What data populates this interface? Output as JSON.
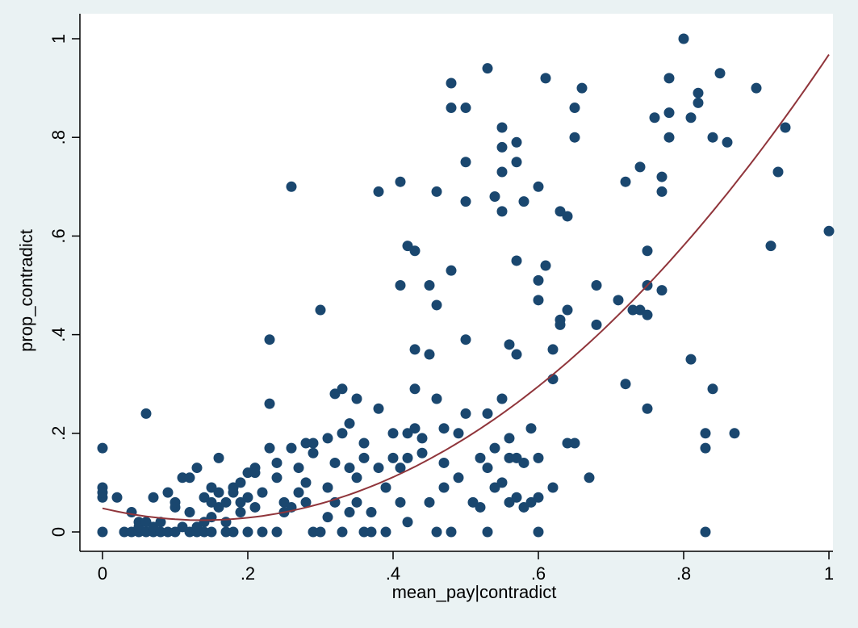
{
  "chart_data": {
    "type": "scatter",
    "xlabel": "mean_pay|contradict",
    "ylabel": "prop_contradict",
    "xlim": [
      0,
      1
    ],
    "ylim": [
      0,
      1
    ],
    "x_ticks": [
      0,
      0.2,
      0.4,
      0.6,
      0.8,
      1
    ],
    "x_tick_labels": [
      "0",
      ".2",
      ".4",
      ".6",
      ".8",
      "1"
    ],
    "y_ticks": [
      0,
      0.2,
      0.4,
      0.6,
      0.8,
      1
    ],
    "y_tick_labels": [
      "0",
      ".2",
      ".4",
      ".6",
      ".8",
      "1"
    ],
    "grid": false,
    "legend": "none",
    "colors": {
      "background": "#eaf2f3",
      "plot_area": "#ffffff",
      "points": "#1a476f",
      "fit_line": "#90353b"
    },
    "series": [
      {
        "type": "scatter",
        "points": [
          [
            0,
            0
          ],
          [
            0,
            0.17
          ],
          [
            0,
            0.07
          ],
          [
            0,
            0.08
          ],
          [
            0,
            0.09
          ],
          [
            0.02,
            0.07
          ],
          [
            0.03,
            0
          ],
          [
            0.04,
            0.04
          ],
          [
            0.04,
            0
          ],
          [
            0.05,
            0.02
          ],
          [
            0.05,
            0
          ],
          [
            0.05,
            0.01
          ],
          [
            0.06,
            0
          ],
          [
            0.06,
            0.02
          ],
          [
            0.06,
            0.24
          ],
          [
            0.07,
            0
          ],
          [
            0.07,
            0.01
          ],
          [
            0.07,
            0.07
          ],
          [
            0.08,
            0
          ],
          [
            0.08,
            0.02
          ],
          [
            0.09,
            0.08
          ],
          [
            0.09,
            0
          ],
          [
            0.1,
            0.05
          ],
          [
            0.1,
            0.06
          ],
          [
            0.1,
            0
          ],
          [
            0.11,
            0.01
          ],
          [
            0.11,
            0.11
          ],
          [
            0.12,
            0.04
          ],
          [
            0.12,
            0.11
          ],
          [
            0.12,
            0
          ],
          [
            0.13,
            0
          ],
          [
            0.13,
            0.01
          ],
          [
            0.13,
            0.13
          ],
          [
            0.14,
            0.07
          ],
          [
            0.14,
            0.02
          ],
          [
            0.14,
            0
          ],
          [
            0.15,
            0.03
          ],
          [
            0.15,
            0.06
          ],
          [
            0.15,
            0
          ],
          [
            0.15,
            0.09
          ],
          [
            0.16,
            0.15
          ],
          [
            0.16,
            0.05
          ],
          [
            0.16,
            0.08
          ],
          [
            0.17,
            0.06
          ],
          [
            0.17,
            0
          ],
          [
            0.17,
            0.02
          ],
          [
            0.18,
            0.08
          ],
          [
            0.18,
            0.09
          ],
          [
            0.18,
            0
          ],
          [
            0.19,
            0.04
          ],
          [
            0.19,
            0.06
          ],
          [
            0.19,
            0.1
          ],
          [
            0.2,
            0.12
          ],
          [
            0.2,
            0
          ],
          [
            0.2,
            0.07
          ],
          [
            0.21,
            0.13
          ],
          [
            0.21,
            0.05
          ],
          [
            0.21,
            0.12
          ],
          [
            0.22,
            0
          ],
          [
            0.22,
            0.08
          ],
          [
            0.23,
            0.17
          ],
          [
            0.23,
            0.39
          ],
          [
            0.23,
            0.26
          ],
          [
            0.24,
            0.14
          ],
          [
            0.24,
            0.11
          ],
          [
            0.24,
            0
          ],
          [
            0.25,
            0.06
          ],
          [
            0.25,
            0.04
          ],
          [
            0.26,
            0.7
          ],
          [
            0.26,
            0.17
          ],
          [
            0.26,
            0.05
          ],
          [
            0.27,
            0.08
          ],
          [
            0.27,
            0.13
          ],
          [
            0.28,
            0.18
          ],
          [
            0.28,
            0.1
          ],
          [
            0.28,
            0.06
          ],
          [
            0.29,
            0.18
          ],
          [
            0.29,
            0.16
          ],
          [
            0.29,
            0
          ],
          [
            0.3,
            0.45
          ],
          [
            0.3,
            0
          ],
          [
            0.31,
            0.19
          ],
          [
            0.31,
            0.09
          ],
          [
            0.31,
            0.03
          ],
          [
            0.32,
            0.14
          ],
          [
            0.32,
            0.28
          ],
          [
            0.32,
            0.06
          ],
          [
            0.33,
            0.2
          ],
          [
            0.33,
            0.29
          ],
          [
            0.33,
            0
          ],
          [
            0.34,
            0.22
          ],
          [
            0.34,
            0.13
          ],
          [
            0.34,
            0.04
          ],
          [
            0.35,
            0.27
          ],
          [
            0.35,
            0.11
          ],
          [
            0.35,
            0.06
          ],
          [
            0.36,
            0.15
          ],
          [
            0.36,
            0.18
          ],
          [
            0.36,
            0
          ],
          [
            0.37,
            0.04
          ],
          [
            0.37,
            0
          ],
          [
            0.38,
            0.69
          ],
          [
            0.38,
            0.25
          ],
          [
            0.38,
            0.13
          ],
          [
            0.39,
            0
          ],
          [
            0.39,
            0.09
          ],
          [
            0.4,
            0.2
          ],
          [
            0.4,
            0.15
          ],
          [
            0.41,
            0.71
          ],
          [
            0.41,
            0.5
          ],
          [
            0.41,
            0.13
          ],
          [
            0.41,
            0.06
          ],
          [
            0.42,
            0.58
          ],
          [
            0.42,
            0.2
          ],
          [
            0.42,
            0.15
          ],
          [
            0.42,
            0.02
          ],
          [
            0.43,
            0.57
          ],
          [
            0.43,
            0.21
          ],
          [
            0.43,
            0.37
          ],
          [
            0.43,
            0.29
          ],
          [
            0.44,
            0.19
          ],
          [
            0.44,
            0.16
          ],
          [
            0.45,
            0.06
          ],
          [
            0.45,
            0.5
          ],
          [
            0.45,
            0.36
          ],
          [
            0.46,
            0.46
          ],
          [
            0.46,
            0.27
          ],
          [
            0.46,
            0.69
          ],
          [
            0.46,
            0
          ],
          [
            0.47,
            0.09
          ],
          [
            0.47,
            0.14
          ],
          [
            0.47,
            0.21
          ],
          [
            0.48,
            0.53
          ],
          [
            0.48,
            0.91
          ],
          [
            0.48,
            0.86
          ],
          [
            0.48,
            0
          ],
          [
            0.49,
            0.11
          ],
          [
            0.49,
            0.2
          ],
          [
            0.5,
            0.86
          ],
          [
            0.5,
            0.75
          ],
          [
            0.5,
            0.67
          ],
          [
            0.5,
            0.39
          ],
          [
            0.5,
            0.24
          ],
          [
            0.51,
            0.06
          ],
          [
            0.52,
            0.05
          ],
          [
            0.52,
            0.15
          ],
          [
            0.53,
            0.94
          ],
          [
            0.53,
            0.13
          ],
          [
            0.53,
            0.24
          ],
          [
            0.53,
            0
          ],
          [
            0.54,
            0.09
          ],
          [
            0.54,
            0.68
          ],
          [
            0.54,
            0.17
          ],
          [
            0.55,
            0.82
          ],
          [
            0.55,
            0.78
          ],
          [
            0.55,
            0.73
          ],
          [
            0.55,
            0.65
          ],
          [
            0.55,
            0.27
          ],
          [
            0.55,
            0.1
          ],
          [
            0.56,
            0.19
          ],
          [
            0.56,
            0.15
          ],
          [
            0.56,
            0.06
          ],
          [
            0.56,
            0.38
          ],
          [
            0.57,
            0.75
          ],
          [
            0.57,
            0.79
          ],
          [
            0.57,
            0.55
          ],
          [
            0.57,
            0.36
          ],
          [
            0.57,
            0.15
          ],
          [
            0.57,
            0.07
          ],
          [
            0.58,
            0.67
          ],
          [
            0.58,
            0.14
          ],
          [
            0.58,
            0.05
          ],
          [
            0.59,
            0.21
          ],
          [
            0.59,
            0.06
          ],
          [
            0.6,
            0.7
          ],
          [
            0.6,
            0.51
          ],
          [
            0.6,
            0.47
          ],
          [
            0.6,
            0.15
          ],
          [
            0.6,
            0.07
          ],
          [
            0.6,
            0
          ],
          [
            0.61,
            0.92
          ],
          [
            0.61,
            0.54
          ],
          [
            0.62,
            0.37
          ],
          [
            0.62,
            0.31
          ],
          [
            0.62,
            0.09
          ],
          [
            0.63,
            0.65
          ],
          [
            0.63,
            0.43
          ],
          [
            0.63,
            0.42
          ],
          [
            0.64,
            0.64
          ],
          [
            0.64,
            0.45
          ],
          [
            0.64,
            0.18
          ],
          [
            0.65,
            0.86
          ],
          [
            0.65,
            0.8
          ],
          [
            0.65,
            0.18
          ],
          [
            0.66,
            0.9
          ],
          [
            0.67,
            0.11
          ],
          [
            0.68,
            0.5
          ],
          [
            0.68,
            0.42
          ],
          [
            0.71,
            0.47
          ],
          [
            0.72,
            0.71
          ],
          [
            0.72,
            0.3
          ],
          [
            0.73,
            0.45
          ],
          [
            0.74,
            0.74
          ],
          [
            0.74,
            0.45
          ],
          [
            0.75,
            0.57
          ],
          [
            0.75,
            0.5
          ],
          [
            0.75,
            0.44
          ],
          [
            0.75,
            0.25
          ],
          [
            0.76,
            0.84
          ],
          [
            0.77,
            0.72
          ],
          [
            0.77,
            0.69
          ],
          [
            0.77,
            0.49
          ],
          [
            0.78,
            0.85
          ],
          [
            0.78,
            0.8
          ],
          [
            0.78,
            0.92
          ],
          [
            0.8,
            1
          ],
          [
            0.81,
            0.84
          ],
          [
            0.81,
            0.35
          ],
          [
            0.82,
            0.87
          ],
          [
            0.82,
            0.89
          ],
          [
            0.83,
            0.2
          ],
          [
            0.83,
            0.17
          ],
          [
            0.83,
            0
          ],
          [
            0.84,
            0.8
          ],
          [
            0.84,
            0.29
          ],
          [
            0.85,
            0.93
          ],
          [
            0.86,
            0.79
          ],
          [
            0.87,
            0.2
          ],
          [
            0.9,
            0.9
          ],
          [
            0.92,
            0.58
          ],
          [
            0.93,
            0.73
          ],
          [
            0.94,
            0.82
          ],
          [
            1,
            0.61
          ]
        ]
      },
      {
        "type": "line",
        "fit": "quadratic",
        "coefficients": [
          0.048,
          -0.35,
          1.27
        ]
      }
    ]
  }
}
